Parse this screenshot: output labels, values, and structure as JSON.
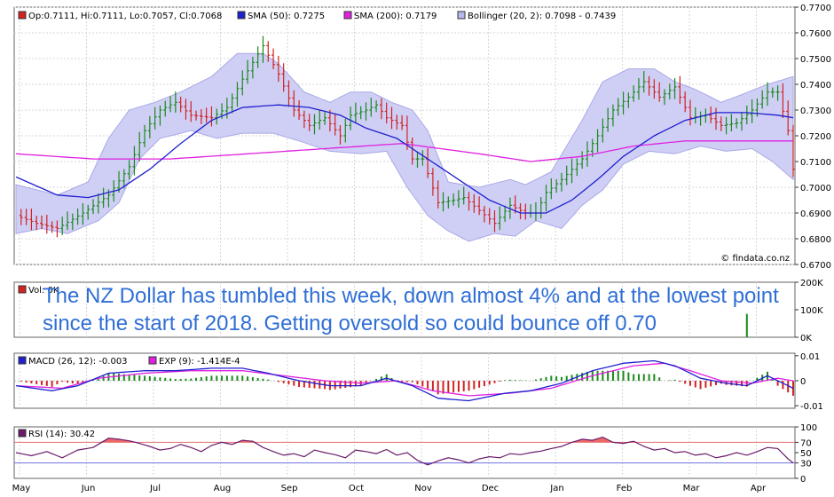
{
  "annotation": "The NZ Dollar has tumbled this week, down almost 4% and at the lowest point since the start of 2018. Getting oversold so could bounce off 0.70",
  "watermark": "© findata.co.nz",
  "months": [
    "May",
    "Jun",
    "Jul",
    "Aug",
    "Sep",
    "Oct",
    "Nov",
    "Dec",
    "Jan",
    "Feb",
    "Mar",
    "Apr"
  ],
  "chart_data": [
    {
      "type": "line",
      "panel": "price",
      "legend": [
        {
          "text": "Op:0.7111, Hi:0.7111, Lo:0.7057, Cl:0.7068",
          "color": "#d22222"
        },
        {
          "text": "SMA (50): 0.7275",
          "color": "#1f1fd0"
        },
        {
          "text": "SMA (200): 0.7179",
          "color": "#e020e0"
        },
        {
          "text": "Bollinger (20, 2): 0.7098 - 0.7439",
          "color": "#b8b8ee"
        }
      ],
      "yticks": [
        "0.7700",
        "0.7600",
        "0.7500",
        "0.7400",
        "0.7300",
        "0.7200",
        "0.7100",
        "0.7000",
        "0.6900",
        "0.6800",
        "0.6700"
      ],
      "ylim": [
        0.67,
        0.77
      ],
      "close": [
        [
          0,
          0.689
        ],
        [
          4,
          0.686
        ],
        [
          8,
          0.684
        ],
        [
          13,
          0.69
        ],
        [
          18,
          0.697
        ],
        [
          22,
          0.708
        ],
        [
          25,
          0.722
        ],
        [
          28,
          0.73
        ],
        [
          31,
          0.733
        ],
        [
          34,
          0.728
        ],
        [
          38,
          0.727
        ],
        [
          41,
          0.731
        ],
        [
          44,
          0.742
        ],
        [
          48,
          0.755
        ],
        [
          51,
          0.744
        ],
        [
          54,
          0.73
        ],
        [
          57,
          0.724
        ],
        [
          60,
          0.727
        ],
        [
          63,
          0.72
        ],
        [
          65,
          0.728
        ],
        [
          68,
          0.73
        ],
        [
          70,
          0.732
        ],
        [
          72,
          0.727
        ],
        [
          75,
          0.724
        ],
        [
          77,
          0.711
        ],
        [
          79,
          0.711
        ],
        [
          82,
          0.694
        ],
        [
          85,
          0.695
        ],
        [
          87,
          0.696
        ],
        [
          90,
          0.691
        ],
        [
          93,
          0.686
        ],
        [
          96,
          0.693
        ],
        [
          99,
          0.69
        ],
        [
          101,
          0.69
        ],
        [
          103,
          0.698
        ],
        [
          106,
          0.703
        ],
        [
          110,
          0.711
        ],
        [
          113,
          0.72
        ],
        [
          116,
          0.73
        ],
        [
          119,
          0.735
        ],
        [
          122,
          0.741
        ],
        [
          125,
          0.735
        ],
        [
          128,
          0.739
        ],
        [
          131,
          0.727
        ],
        [
          134,
          0.728
        ],
        [
          137,
          0.724
        ],
        [
          140,
          0.725
        ],
        [
          143,
          0.73
        ],
        [
          146,
          0.737
        ],
        [
          148,
          0.737
        ],
        [
          150,
          0.722
        ],
        [
          151,
          0.707
        ]
      ],
      "sma50": [
        [
          0,
          0.704
        ],
        [
          8,
          0.697
        ],
        [
          14,
          0.696
        ],
        [
          20,
          0.699
        ],
        [
          26,
          0.707
        ],
        [
          32,
          0.717
        ],
        [
          38,
          0.726
        ],
        [
          44,
          0.731
        ],
        [
          51,
          0.732
        ],
        [
          57,
          0.731
        ],
        [
          63,
          0.728
        ],
        [
          68,
          0.723
        ],
        [
          74,
          0.719
        ],
        [
          80,
          0.711
        ],
        [
          86,
          0.703
        ],
        [
          92,
          0.695
        ],
        [
          98,
          0.69
        ],
        [
          103,
          0.69
        ],
        [
          108,
          0.695
        ],
        [
          113,
          0.703
        ],
        [
          118,
          0.712
        ],
        [
          124,
          0.72
        ],
        [
          130,
          0.726
        ],
        [
          136,
          0.729
        ],
        [
          142,
          0.729
        ],
        [
          148,
          0.728
        ],
        [
          151,
          0.727
        ]
      ],
      "sma200": [
        [
          0,
          0.713
        ],
        [
          15,
          0.711
        ],
        [
          30,
          0.711
        ],
        [
          45,
          0.713
        ],
        [
          60,
          0.715
        ],
        [
          75,
          0.717
        ],
        [
          90,
          0.713
        ],
        [
          100,
          0.71
        ],
        [
          110,
          0.712
        ],
        [
          120,
          0.716
        ],
        [
          130,
          0.718
        ],
        [
          140,
          0.718
        ],
        [
          151,
          0.718
        ]
      ],
      "bb_upper": [
        [
          0,
          0.701
        ],
        [
          8,
          0.697
        ],
        [
          14,
          0.702
        ],
        [
          18,
          0.719
        ],
        [
          22,
          0.73
        ],
        [
          27,
          0.733
        ],
        [
          32,
          0.737
        ],
        [
          38,
          0.743
        ],
        [
          43,
          0.752
        ],
        [
          48,
          0.752
        ],
        [
          51,
          0.748
        ],
        [
          56,
          0.737
        ],
        [
          61,
          0.733
        ],
        [
          65,
          0.737
        ],
        [
          69,
          0.737
        ],
        [
          73,
          0.733
        ],
        [
          77,
          0.73
        ],
        [
          80,
          0.722
        ],
        [
          84,
          0.702
        ],
        [
          90,
          0.7
        ],
        [
          96,
          0.703
        ],
        [
          99,
          0.701
        ],
        [
          104,
          0.706
        ],
        [
          110,
          0.726
        ],
        [
          114,
          0.741
        ],
        [
          119,
          0.746
        ],
        [
          124,
          0.746
        ],
        [
          128,
          0.741
        ],
        [
          132,
          0.738
        ],
        [
          137,
          0.733
        ],
        [
          141,
          0.736
        ],
        [
          146,
          0.74
        ],
        [
          151,
          0.743
        ]
      ],
      "bb_lower": [
        [
          0,
          0.682
        ],
        [
          5,
          0.684
        ],
        [
          10,
          0.682
        ],
        [
          16,
          0.687
        ],
        [
          20,
          0.694
        ],
        [
          24,
          0.711
        ],
        [
          28,
          0.719
        ],
        [
          34,
          0.722
        ],
        [
          39,
          0.719
        ],
        [
          44,
          0.721
        ],
        [
          50,
          0.721
        ],
        [
          55,
          0.718
        ],
        [
          61,
          0.714
        ],
        [
          67,
          0.713
        ],
        [
          72,
          0.714
        ],
        [
          76,
          0.7
        ],
        [
          80,
          0.689
        ],
        [
          84,
          0.683
        ],
        [
          88,
          0.679
        ],
        [
          93,
          0.682
        ],
        [
          97,
          0.681
        ],
        [
          101,
          0.687
        ],
        [
          106,
          0.684
        ],
        [
          110,
          0.693
        ],
        [
          114,
          0.699
        ],
        [
          118,
          0.709
        ],
        [
          123,
          0.714
        ],
        [
          128,
          0.713
        ],
        [
          133,
          0.716
        ],
        [
          138,
          0.714
        ],
        [
          143,
          0.715
        ],
        [
          147,
          0.71
        ],
        [
          151,
          0.703
        ]
      ]
    },
    {
      "type": "bar",
      "panel": "volume",
      "legend": "Vol: 0K",
      "yticks": [
        "200K",
        "100K",
        "0K"
      ],
      "ylim": [
        0,
        200000
      ],
      "spike_bar": 142,
      "spike_value": 85000
    },
    {
      "type": "line",
      "panel": "macd",
      "legend": [
        {
          "text": "MACD (26, 12): -0.003",
          "color": "#1f1fd0"
        },
        {
          "text": "EXP (9): -1.414E-4",
          "color": "#e020e0"
        }
      ],
      "yticks": [
        "0.01",
        "0",
        "-0.01"
      ],
      "ylim": [
        -0.011,
        0.011
      ],
      "macd": [
        [
          0,
          -0.002
        ],
        [
          7,
          -0.004
        ],
        [
          12,
          -0.002
        ],
        [
          18,
          0.003
        ],
        [
          25,
          0.004
        ],
        [
          31,
          0.004
        ],
        [
          38,
          0.005
        ],
        [
          44,
          0.005
        ],
        [
          49,
          0.003
        ],
        [
          55,
          0
        ],
        [
          61,
          -0.002
        ],
        [
          67,
          -0.002
        ],
        [
          72,
          0.001
        ],
        [
          77,
          -0.002
        ],
        [
          82,
          -0.007
        ],
        [
          88,
          -0.008
        ],
        [
          95,
          -0.005
        ],
        [
          100,
          -0.004
        ],
        [
          106,
          -0.001
        ],
        [
          112,
          0.004
        ],
        [
          118,
          0.007
        ],
        [
          124,
          0.008
        ],
        [
          128,
          0.006
        ],
        [
          133,
          0.001
        ],
        [
          138,
          -0.001
        ],
        [
          142,
          -0.002
        ],
        [
          146,
          0.002
        ],
        [
          151,
          -0.003
        ]
      ],
      "signal": [
        [
          0,
          -0.002
        ],
        [
          9,
          -0.003
        ],
        [
          16,
          0.001
        ],
        [
          25,
          0.003
        ],
        [
          34,
          0.004
        ],
        [
          44,
          0.004
        ],
        [
          52,
          0.002
        ],
        [
          60,
          0
        ],
        [
          67,
          -0.001
        ],
        [
          74,
          0
        ],
        [
          81,
          -0.004
        ],
        [
          88,
          -0.006
        ],
        [
          96,
          -0.005
        ],
        [
          104,
          -0.003
        ],
        [
          112,
          0.002
        ],
        [
          120,
          0.006
        ],
        [
          126,
          0.007
        ],
        [
          131,
          0.004
        ],
        [
          137,
          0
        ],
        [
          143,
          -0.001
        ],
        [
          148,
          0.001
        ],
        [
          151,
          0
        ]
      ]
    },
    {
      "type": "line",
      "panel": "rsi",
      "legend": "RSI (14): 30.42",
      "yticks": [
        "100",
        "70",
        "50",
        "30",
        "0"
      ],
      "ylim": [
        0,
        100
      ],
      "levels": [
        70,
        30
      ],
      "rsi": [
        [
          0,
          50
        ],
        [
          3,
          44
        ],
        [
          6,
          52
        ],
        [
          9,
          40
        ],
        [
          12,
          55
        ],
        [
          15,
          60
        ],
        [
          18,
          78
        ],
        [
          20,
          76
        ],
        [
          22,
          73
        ],
        [
          24,
          68
        ],
        [
          26,
          62
        ],
        [
          28,
          55
        ],
        [
          30,
          58
        ],
        [
          32,
          66
        ],
        [
          34,
          60
        ],
        [
          36,
          52
        ],
        [
          38,
          64
        ],
        [
          40,
          70
        ],
        [
          42,
          66
        ],
        [
          44,
          74
        ],
        [
          46,
          72
        ],
        [
          48,
          60
        ],
        [
          50,
          52
        ],
        [
          52,
          45
        ],
        [
          54,
          48
        ],
        [
          56,
          42
        ],
        [
          58,
          55
        ],
        [
          60,
          50
        ],
        [
          62,
          46
        ],
        [
          64,
          40
        ],
        [
          66,
          55
        ],
        [
          68,
          52
        ],
        [
          70,
          48
        ],
        [
          72,
          56
        ],
        [
          74,
          45
        ],
        [
          76,
          50
        ],
        [
          78,
          35
        ],
        [
          80,
          26
        ],
        [
          82,
          34
        ],
        [
          84,
          40
        ],
        [
          86,
          36
        ],
        [
          88,
          30
        ],
        [
          90,
          38
        ],
        [
          92,
          42
        ],
        [
          94,
          40
        ],
        [
          96,
          48
        ],
        [
          98,
          46
        ],
        [
          100,
          50
        ],
        [
          102,
          53
        ],
        [
          104,
          58
        ],
        [
          106,
          62
        ],
        [
          108,
          70
        ],
        [
          110,
          76
        ],
        [
          112,
          74
        ],
        [
          114,
          80
        ],
        [
          116,
          70
        ],
        [
          118,
          68
        ],
        [
          120,
          72
        ],
        [
          122,
          62
        ],
        [
          124,
          55
        ],
        [
          126,
          58
        ],
        [
          128,
          50
        ],
        [
          130,
          52
        ],
        [
          132,
          45
        ],
        [
          134,
          48
        ],
        [
          136,
          40
        ],
        [
          138,
          44
        ],
        [
          140,
          50
        ],
        [
          142,
          45
        ],
        [
          144,
          52
        ],
        [
          146,
          60
        ],
        [
          148,
          58
        ],
        [
          150,
          38
        ],
        [
          151,
          30
        ]
      ]
    }
  ]
}
